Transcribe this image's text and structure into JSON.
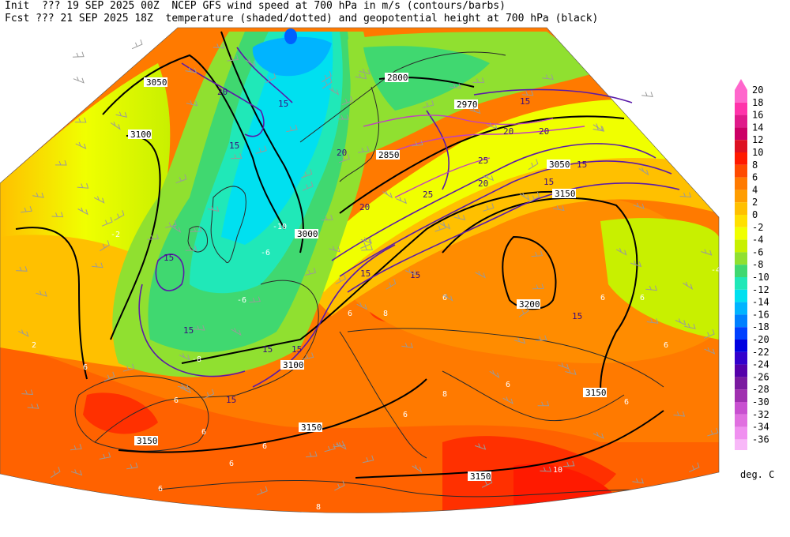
{
  "header": {
    "line1": "Init  ??? 19 SEP 2025 00Z  NCEP GFS wind speed at 700 hPa in m/s (contours/barbs)",
    "line2": "Fcst ??? 21 SEP 2025 18Z  temperature (shaded/dotted) and geopotential height at 700 hPa (black)"
  },
  "legend": {
    "units": "deg. C",
    "levels": [
      {
        "label": "20",
        "color": "#ff66cc"
      },
      {
        "label": "18",
        "color": "#ff33aa"
      },
      {
        "label": "16",
        "color": "#e01a8a"
      },
      {
        "label": "14",
        "color": "#cc0066"
      },
      {
        "label": "12",
        "color": "#dd1122"
      },
      {
        "label": "10",
        "color": "#ff1a00"
      },
      {
        "label": "8",
        "color": "#ff4a00"
      },
      {
        "label": "6",
        "color": "#ff7a00"
      },
      {
        "label": "4",
        "color": "#ff9d00"
      },
      {
        "label": "2",
        "color": "#ffc000"
      },
      {
        "label": "0",
        "color": "#ffe000"
      },
      {
        "label": "-2",
        "color": "#f0ff00"
      },
      {
        "label": "-4",
        "color": "#c8f000"
      },
      {
        "label": "-6",
        "color": "#90e030"
      },
      {
        "label": "-8",
        "color": "#40d870"
      },
      {
        "label": "-10",
        "color": "#20e8b8"
      },
      {
        "label": "-12",
        "color": "#00e0f0"
      },
      {
        "label": "-14",
        "color": "#00b4ff"
      },
      {
        "label": "-16",
        "color": "#0080ff"
      },
      {
        "label": "-18",
        "color": "#0040ff"
      },
      {
        "label": "-20",
        "color": "#0000e0"
      },
      {
        "label": "-22",
        "color": "#3300cc"
      },
      {
        "label": "-24",
        "color": "#5500aa"
      },
      {
        "label": "-26",
        "color": "#7a1aa0"
      },
      {
        "label": "-28",
        "color": "#a030b0"
      },
      {
        "label": "-30",
        "color": "#c850d0"
      },
      {
        "label": "-32",
        "color": "#e070e0"
      },
      {
        "label": "-34",
        "color": "#f090f0"
      },
      {
        "label": "-36",
        "color": "#f8b8f8"
      }
    ]
  },
  "map": {
    "height_labels": [
      "3050",
      "3100",
      "2800",
      "2970",
      "2850",
      "3050",
      "3000",
      "3150",
      "3200",
      "3150",
      "3150",
      "3150",
      "3150",
      "3150",
      "3100",
      "3100"
    ],
    "wind_labels": [
      "20",
      "15",
      "15",
      "20",
      "15",
      "20",
      "20",
      "15",
      "20",
      "25",
      "25",
      "20",
      "15",
      "15",
      "15",
      "15",
      "15",
      "15",
      "15",
      "15",
      "15"
    ],
    "temp_labels": [
      "-2",
      "-10",
      "-6",
      "-6",
      "-8",
      "2",
      "6",
      "6",
      "6",
      "6",
      "8",
      "6",
      "-4",
      "6",
      "10",
      "6",
      "8",
      "6",
      "8",
      "6",
      "6",
      "6",
      "6",
      "6",
      "6"
    ]
  }
}
